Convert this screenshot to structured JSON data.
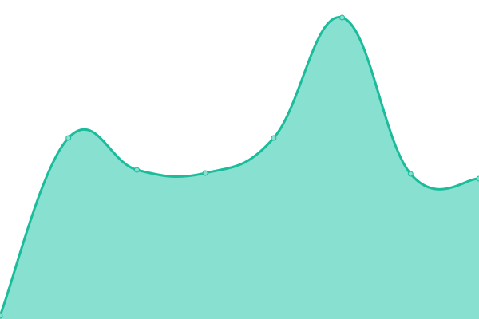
{
  "chart_data": {
    "type": "area",
    "x": [
      0,
      1,
      2,
      3,
      4,
      5,
      6,
      7
    ],
    "values": [
      4,
      227,
      187,
      183,
      227,
      378,
      182,
      176
    ],
    "ylim": [
      0,
      400
    ],
    "grid": false,
    "legend": "none",
    "smooth": true,
    "colors": {
      "line": "#1abc9c",
      "fill": "#88e0d0",
      "point_fill": "#88e0d0",
      "point_stroke": "#1abc9c"
    }
  }
}
